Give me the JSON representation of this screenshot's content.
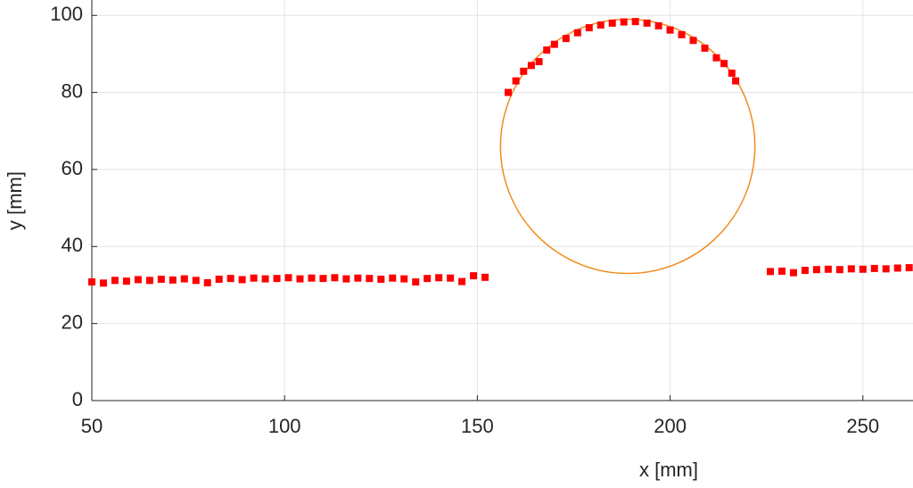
{
  "chart_data": {
    "type": "scatter",
    "xlabel": "x [mm]",
    "ylabel": "y [mm]",
    "x": [
      50,
      53,
      56,
      59,
      62,
      65,
      68,
      71,
      74,
      77,
      80,
      83,
      86,
      89,
      92,
      95,
      98,
      101,
      104,
      107,
      110,
      113,
      116,
      119,
      122,
      125,
      128,
      131,
      134,
      137,
      140,
      143,
      146,
      149,
      152,
      158,
      160,
      162,
      164,
      166,
      168,
      170,
      173,
      176,
      179,
      182,
      185,
      188,
      191,
      194,
      197,
      200,
      203,
      206,
      209,
      212,
      214,
      216,
      217,
      226,
      229,
      232,
      235,
      238,
      241,
      244,
      247,
      250,
      253,
      256,
      259,
      262
    ],
    "y": [
      30.8,
      30.5,
      31.2,
      31.0,
      31.4,
      31.2,
      31.5,
      31.3,
      31.6,
      31.2,
      30.6,
      31.5,
      31.7,
      31.4,
      31.8,
      31.6,
      31.7,
      31.9,
      31.6,
      31.8,
      31.7,
      31.9,
      31.6,
      31.8,
      31.7,
      31.5,
      31.8,
      31.6,
      30.8,
      31.7,
      31.9,
      31.8,
      30.9,
      32.4,
      32.0,
      80,
      83,
      85.5,
      87,
      88,
      91,
      92.5,
      94,
      95.5,
      96.8,
      97.5,
      98,
      98.3,
      98.4,
      98,
      97.3,
      96.2,
      95,
      93.5,
      91.5,
      89,
      87.5,
      85,
      83,
      33.5,
      33.6,
      33.2,
      33.8,
      34.0,
      34.1,
      34.0,
      34.2,
      34.1,
      34.3,
      34.2,
      34.4,
      34.5
    ],
    "color": "#ff0000",
    "circle": {
      "center": [
        189,
        66
      ],
      "radius": 33,
      "color": "#f08c1e"
    },
    "xlim": [
      50,
      263
    ],
    "ylim": [
      0,
      104
    ],
    "xticks": [
      50,
      100,
      150,
      200,
      250
    ],
    "yticks": [
      0,
      20,
      40,
      60,
      80,
      100
    ],
    "grid": true
  }
}
